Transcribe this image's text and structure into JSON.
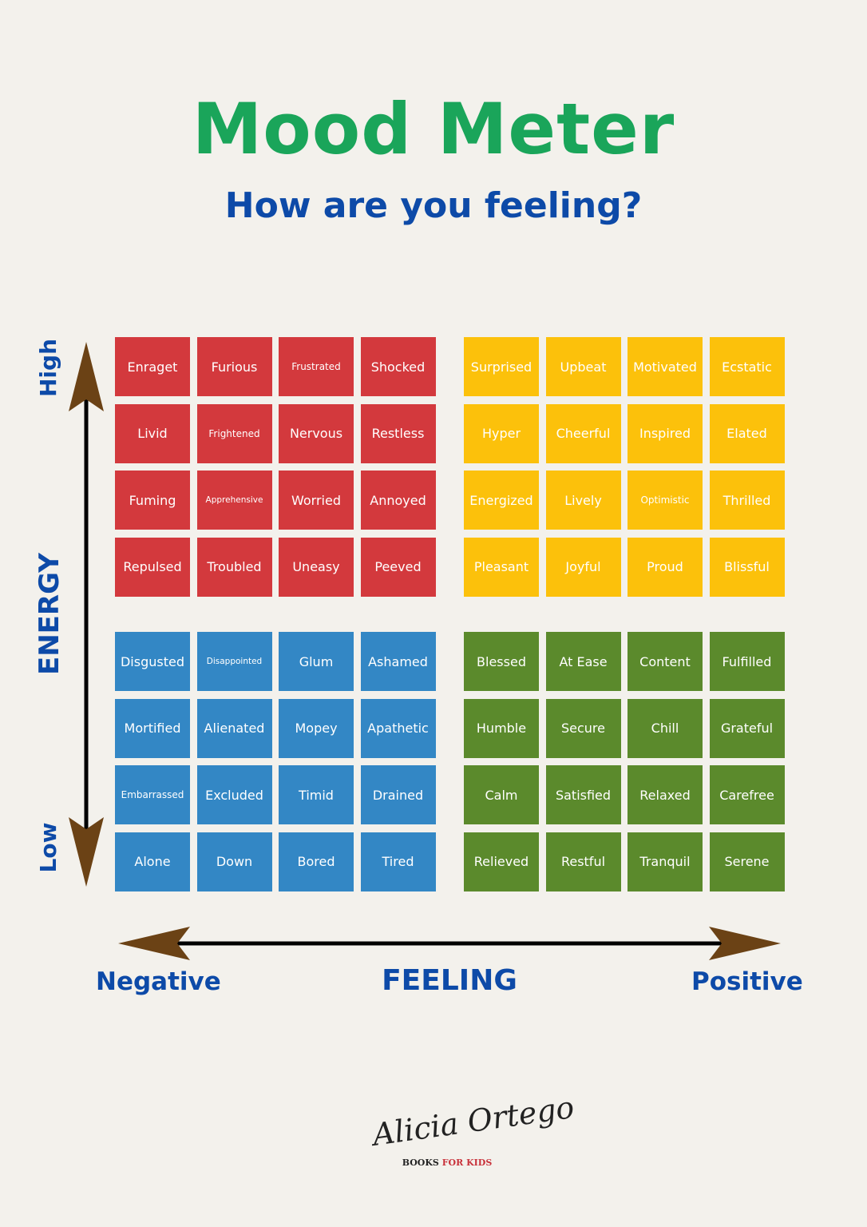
{
  "title": "Mood Meter",
  "subtitle": "How are you feeling?",
  "axes": {
    "energy_label": "ENERGY",
    "energy_high": "High",
    "energy_low": "Low",
    "feeling_label": "FEELING",
    "feeling_negative": "Negative",
    "feeling_positive": "Positive"
  },
  "quadrants": {
    "high_negative": {
      "color": "#d3393d",
      "rows": [
        [
          "Enraget",
          "Furious",
          "Frustrated",
          "Shocked"
        ],
        [
          "Livid",
          "Frightened",
          "Nervous",
          "Restless"
        ],
        [
          "Fuming",
          "Apprehensive",
          "Worried",
          "Annoyed"
        ],
        [
          "Repulsed",
          "Troubled",
          "Uneasy",
          "Peeved"
        ]
      ]
    },
    "high_positive": {
      "color": "#fcc10b",
      "rows": [
        [
          "Surprised",
          "Upbeat",
          "Motivated",
          "Ecstatic"
        ],
        [
          "Hyper",
          "Cheerful",
          "Inspired",
          "Elated"
        ],
        [
          "Energized",
          "Lively",
          "Optimistic",
          "Thrilled"
        ],
        [
          "Pleasant",
          "Joyful",
          "Proud",
          "Blissful"
        ]
      ]
    },
    "low_negative": {
      "color": "#3387c5",
      "rows": [
        [
          "Disgusted",
          "Disappointed",
          "Glum",
          "Ashamed"
        ],
        [
          "Mortified",
          "Alienated",
          "Mopey",
          "Apathetic"
        ],
        [
          "Embarrassed",
          "Excluded",
          "Timid",
          "Drained"
        ],
        [
          "Alone",
          "Down",
          "Bored",
          "Tired"
        ]
      ]
    },
    "low_positive": {
      "color": "#5b8a2c",
      "rows": [
        [
          "Blessed",
          "At Ease",
          "Content",
          "Fulfilled"
        ],
        [
          "Humble",
          "Secure",
          "Chill",
          "Grateful"
        ],
        [
          "Calm",
          "Satisfied",
          "Relaxed",
          "Carefree"
        ],
        [
          "Relieved",
          "Restful",
          "Tranquil",
          "Serene"
        ]
      ]
    }
  },
  "logo": {
    "name": "Alicia Ortego",
    "tagline_part1": "BOOKS",
    "tagline_part2": "FOR KIDS"
  }
}
